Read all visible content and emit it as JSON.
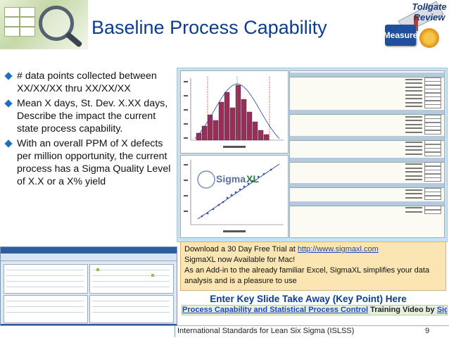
{
  "slide": {
    "title": "Baseline Process Capability",
    "stage_badge": "Measure",
    "tollgate_label_1": "Tollgate",
    "tollgate_label_2": "Review"
  },
  "bullets": [
    "# data points collected between XX/XX/XX thru XX/XX/XX",
    "Mean X days,  St. Dev. X.XX days,  Describe the impact the current state process capability.",
    "With an overall PPM of X defects per million opportunity, the current process has a Sigma Quality Level of X.X or a X% yield"
  ],
  "info_box": {
    "line1_prefix": "Download a 30 Day Free Trial at ",
    "line1_link": "http://www.sigmaxl.com",
    "line2": "SigmaXL now Available for Mac!",
    "line3": "As an Add-in to the already familiar Excel, SigmaXL simplifies your data analysis and is a pleasure to use"
  },
  "takeaway": "Enter Key Slide Take Away (Key Point) Here",
  "video": {
    "link1": "Process Capability and Statistical Process Control",
    "middle": " Training Video by ",
    "link2": "SigmaXL"
  },
  "footer": {
    "text": "International Standards for Lean Six Sigma (ISLSS)",
    "page": "9"
  },
  "colors": {
    "title": "#0a3d91",
    "bullet": "#1e6fc8",
    "info_box": "#fbe6b3",
    "report_frame": "#c6e3f3"
  }
}
